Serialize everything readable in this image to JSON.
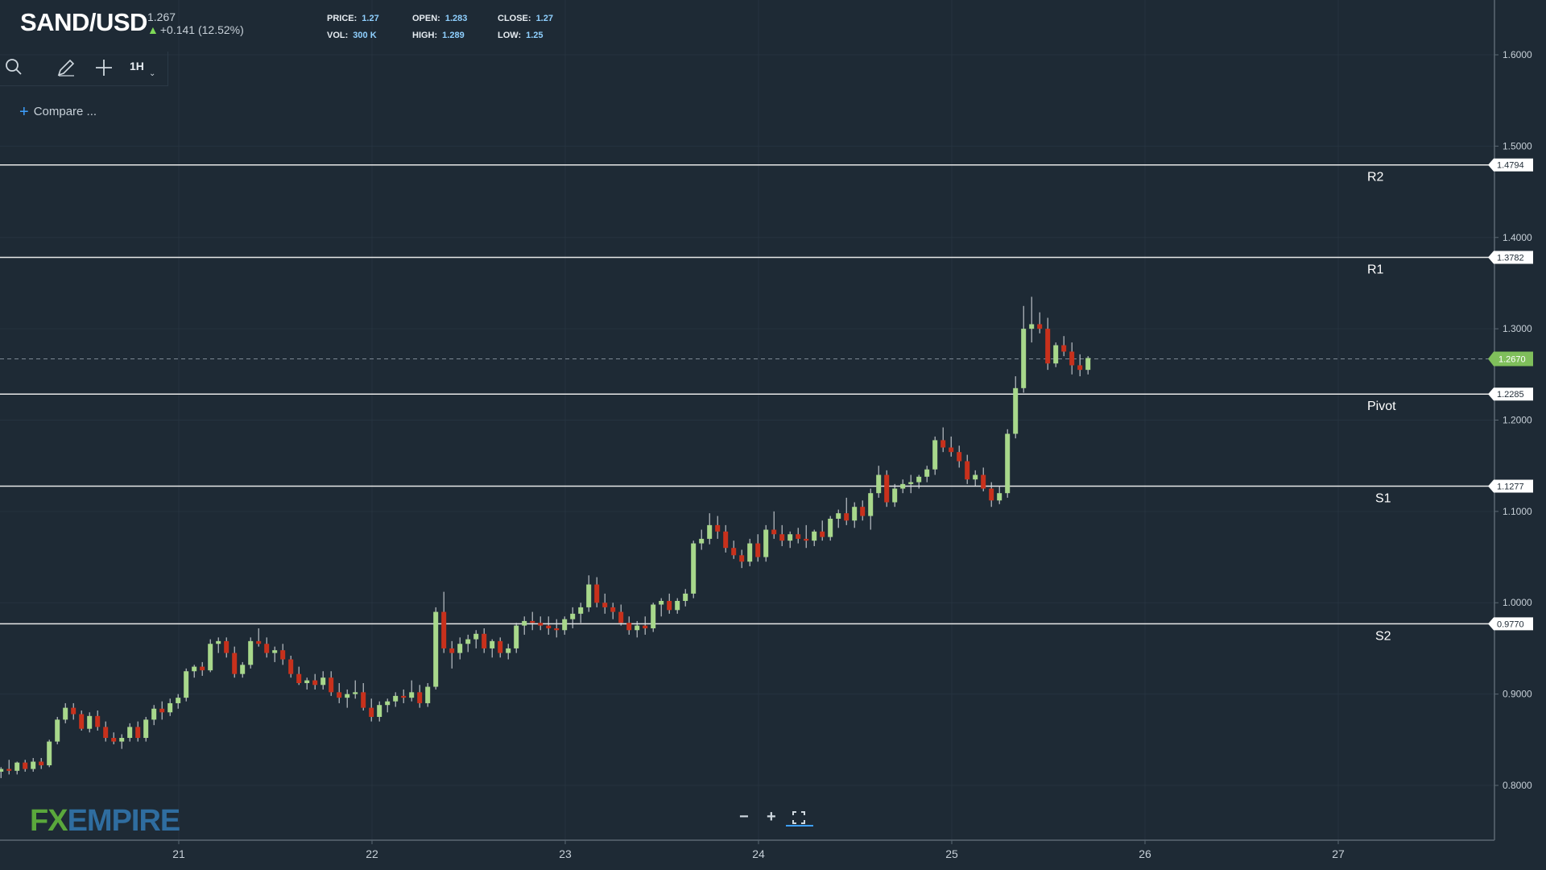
{
  "header": {
    "symbol": "SAND/USD",
    "last_price": "1.267",
    "change": "+0.141 (12.52%)",
    "stats": [
      {
        "label": "PRICE:",
        "value": "1.27"
      },
      {
        "label": "OPEN:",
        "value": "1.283"
      },
      {
        "label": "CLOSE:",
        "value": "1.27"
      },
      {
        "label": "VOL:",
        "value": "300 K"
      },
      {
        "label": "HIGH:",
        "value": "1.289"
      },
      {
        "label": "LOW:",
        "value": "1.25"
      }
    ]
  },
  "toolbar": {
    "timeframe": "1H",
    "compare_label": "Compare ..."
  },
  "watermark": {
    "part1": "FX",
    "part2": "EMPIRE"
  },
  "colors": {
    "background": "#1e2a35",
    "bull": "#a8d88b",
    "bear": "#c8311c",
    "level_line": "#e8e8e8",
    "current_price": "#7fbf5b"
  },
  "chart_data": {
    "type": "candlestick",
    "title": "SAND/USD",
    "x_ticks": [
      "21",
      "22",
      "23",
      "24",
      "25",
      "26",
      "27"
    ],
    "y_ticks": [
      "1.6000",
      "1.5000",
      "1.4000",
      "1.3000",
      "1.2000",
      "1.1000",
      "1.0000",
      "0.9000",
      "0.8000"
    ],
    "ylim": [
      0.74,
      1.66
    ],
    "current_price": {
      "label": "1.2670",
      "value": 1.267
    },
    "levels": [
      {
        "name": "R2",
        "value": 1.4794,
        "label": "1.4794"
      },
      {
        "name": "R1",
        "value": 1.3782,
        "label": "1.3782"
      },
      {
        "name": "Pivot",
        "value": 1.2285,
        "label": "1.2285"
      },
      {
        "name": "S1",
        "value": 1.1277,
        "label": "1.1277"
      },
      {
        "name": "S2",
        "value": 0.977,
        "label": "0.9770"
      }
    ],
    "x_start_day": 20.08,
    "x_step_hours": 1,
    "candles": [
      [
        0.815,
        0.82,
        0.808,
        0.818
      ],
      [
        0.818,
        0.828,
        0.812,
        0.816
      ],
      [
        0.816,
        0.826,
        0.812,
        0.825
      ],
      [
        0.825,
        0.828,
        0.815,
        0.818
      ],
      [
        0.818,
        0.83,
        0.815,
        0.826
      ],
      [
        0.826,
        0.83,
        0.818,
        0.822
      ],
      [
        0.822,
        0.85,
        0.82,
        0.848
      ],
      [
        0.848,
        0.875,
        0.845,
        0.872
      ],
      [
        0.872,
        0.89,
        0.868,
        0.885
      ],
      [
        0.885,
        0.89,
        0.872,
        0.878
      ],
      [
        0.878,
        0.882,
        0.86,
        0.862
      ],
      [
        0.862,
        0.88,
        0.858,
        0.876
      ],
      [
        0.876,
        0.882,
        0.86,
        0.864
      ],
      [
        0.864,
        0.87,
        0.848,
        0.852
      ],
      [
        0.852,
        0.858,
        0.845,
        0.848
      ],
      [
        0.848,
        0.856,
        0.84,
        0.852
      ],
      [
        0.852,
        0.868,
        0.848,
        0.864
      ],
      [
        0.864,
        0.87,
        0.848,
        0.852
      ],
      [
        0.852,
        0.875,
        0.848,
        0.872
      ],
      [
        0.872,
        0.888,
        0.866,
        0.884
      ],
      [
        0.884,
        0.892,
        0.872,
        0.88
      ],
      [
        0.88,
        0.895,
        0.876,
        0.89
      ],
      [
        0.89,
        0.9,
        0.884,
        0.896
      ],
      [
        0.896,
        0.928,
        0.892,
        0.925
      ],
      [
        0.925,
        0.932,
        0.918,
        0.93
      ],
      [
        0.93,
        0.935,
        0.92,
        0.926
      ],
      [
        0.926,
        0.96,
        0.924,
        0.955
      ],
      [
        0.955,
        0.962,
        0.945,
        0.958
      ],
      [
        0.958,
        0.962,
        0.94,
        0.945
      ],
      [
        0.945,
        0.952,
        0.918,
        0.922
      ],
      [
        0.922,
        0.935,
        0.918,
        0.932
      ],
      [
        0.932,
        0.962,
        0.928,
        0.958
      ],
      [
        0.958,
        0.972,
        0.952,
        0.955
      ],
      [
        0.955,
        0.962,
        0.94,
        0.945
      ],
      [
        0.945,
        0.952,
        0.935,
        0.948
      ],
      [
        0.948,
        0.955,
        0.932,
        0.938
      ],
      [
        0.938,
        0.942,
        0.918,
        0.922
      ],
      [
        0.922,
        0.93,
        0.91,
        0.912
      ],
      [
        0.912,
        0.918,
        0.905,
        0.915
      ],
      [
        0.915,
        0.922,
        0.905,
        0.91
      ],
      [
        0.91,
        0.925,
        0.905,
        0.918
      ],
      [
        0.918,
        0.925,
        0.898,
        0.902
      ],
      [
        0.902,
        0.912,
        0.89,
        0.896
      ],
      [
        0.896,
        0.905,
        0.885,
        0.9
      ],
      [
        0.9,
        0.915,
        0.895,
        0.902
      ],
      [
        0.902,
        0.912,
        0.882,
        0.885
      ],
      [
        0.885,
        0.895,
        0.87,
        0.875
      ],
      [
        0.875,
        0.892,
        0.87,
        0.888
      ],
      [
        0.888,
        0.895,
        0.88,
        0.892
      ],
      [
        0.892,
        0.902,
        0.886,
        0.898
      ],
      [
        0.898,
        0.905,
        0.89,
        0.896
      ],
      [
        0.896,
        0.915,
        0.892,
        0.902
      ],
      [
        0.902,
        0.91,
        0.885,
        0.89
      ],
      [
        0.89,
        0.912,
        0.886,
        0.908
      ],
      [
        0.908,
        0.995,
        0.905,
        0.99
      ],
      [
        0.99,
        1.012,
        0.945,
        0.95
      ],
      [
        0.95,
        0.958,
        0.928,
        0.945
      ],
      [
        0.945,
        0.962,
        0.938,
        0.955
      ],
      [
        0.955,
        0.965,
        0.946,
        0.96
      ],
      [
        0.96,
        0.97,
        0.95,
        0.966
      ],
      [
        0.966,
        0.972,
        0.945,
        0.95
      ],
      [
        0.95,
        0.96,
        0.94,
        0.958
      ],
      [
        0.958,
        0.962,
        0.94,
        0.945
      ],
      [
        0.945,
        0.955,
        0.938,
        0.95
      ],
      [
        0.95,
        0.978,
        0.945,
        0.975
      ],
      [
        0.975,
        0.985,
        0.965,
        0.98
      ],
      [
        0.98,
        0.99,
        0.97,
        0.978
      ],
      [
        0.978,
        0.985,
        0.97,
        0.975
      ],
      [
        0.975,
        0.985,
        0.965,
        0.972
      ],
      [
        0.972,
        0.982,
        0.962,
        0.97
      ],
      [
        0.97,
        0.985,
        0.965,
        0.982
      ],
      [
        0.982,
        0.995,
        0.972,
        0.988
      ],
      [
        0.988,
        1.0,
        0.978,
        0.995
      ],
      [
        0.995,
        1.03,
        0.99,
        1.02
      ],
      [
        1.02,
        1.028,
        0.995,
        1.0
      ],
      [
        1.0,
        1.01,
        0.988,
        0.995
      ],
      [
        0.995,
        1.0,
        0.982,
        0.99
      ],
      [
        0.99,
        0.998,
        0.975,
        0.978
      ],
      [
        0.978,
        0.985,
        0.965,
        0.97
      ],
      [
        0.97,
        0.98,
        0.962,
        0.975
      ],
      [
        0.975,
        0.985,
        0.965,
        0.972
      ],
      [
        0.972,
        1.0,
        0.968,
        0.998
      ],
      [
        0.998,
        1.005,
        0.985,
        1.002
      ],
      [
        1.002,
        1.01,
        0.988,
        0.992
      ],
      [
        0.992,
        1.005,
        0.988,
        1.002
      ],
      [
        1.002,
        1.015,
        0.996,
        1.01
      ],
      [
        1.01,
        1.068,
        1.005,
        1.065
      ],
      [
        1.065,
        1.08,
        1.058,
        1.07
      ],
      [
        1.07,
        1.098,
        1.064,
        1.085
      ],
      [
        1.085,
        1.095,
        1.07,
        1.078
      ],
      [
        1.078,
        1.085,
        1.055,
        1.06
      ],
      [
        1.06,
        1.068,
        1.048,
        1.052
      ],
      [
        1.052,
        1.058,
        1.038,
        1.045
      ],
      [
        1.045,
        1.07,
        1.04,
        1.065
      ],
      [
        1.065,
        1.075,
        1.045,
        1.05
      ],
      [
        1.05,
        1.085,
        1.045,
        1.08
      ],
      [
        1.08,
        1.1,
        1.07,
        1.075
      ],
      [
        1.075,
        1.085,
        1.062,
        1.068
      ],
      [
        1.068,
        1.078,
        1.06,
        1.075
      ],
      [
        1.075,
        1.082,
        1.065,
        1.07
      ],
      [
        1.07,
        1.085,
        1.06,
        1.068
      ],
      [
        1.068,
        1.08,
        1.062,
        1.078
      ],
      [
        1.078,
        1.09,
        1.068,
        1.072
      ],
      [
        1.072,
        1.095,
        1.068,
        1.092
      ],
      [
        1.092,
        1.102,
        1.082,
        1.098
      ],
      [
        1.098,
        1.115,
        1.085,
        1.09
      ],
      [
        1.09,
        1.11,
        1.082,
        1.105
      ],
      [
        1.105,
        1.112,
        1.09,
        1.095
      ],
      [
        1.095,
        1.125,
        1.08,
        1.12
      ],
      [
        1.12,
        1.15,
        1.115,
        1.14
      ],
      [
        1.14,
        1.145,
        1.105,
        1.11
      ],
      [
        1.11,
        1.13,
        1.105,
        1.125
      ],
      [
        1.125,
        1.135,
        1.12,
        1.13
      ],
      [
        1.13,
        1.14,
        1.12,
        1.132
      ],
      [
        1.132,
        1.14,
        1.125,
        1.138
      ],
      [
        1.138,
        1.15,
        1.132,
        1.146
      ],
      [
        1.146,
        1.182,
        1.14,
        1.178
      ],
      [
        1.178,
        1.192,
        1.165,
        1.17
      ],
      [
        1.17,
        1.182,
        1.16,
        1.165
      ],
      [
        1.165,
        1.172,
        1.148,
        1.155
      ],
      [
        1.155,
        1.162,
        1.13,
        1.135
      ],
      [
        1.135,
        1.145,
        1.128,
        1.14
      ],
      [
        1.14,
        1.148,
        1.122,
        1.125
      ],
      [
        1.125,
        1.132,
        1.105,
        1.112
      ],
      [
        1.112,
        1.128,
        1.108,
        1.12
      ],
      [
        1.12,
        1.19,
        1.115,
        1.185
      ],
      [
        1.185,
        1.248,
        1.18,
        1.235
      ],
      [
        1.235,
        1.325,
        1.23,
        1.3
      ],
      [
        1.3,
        1.335,
        1.285,
        1.305
      ],
      [
        1.305,
        1.318,
        1.295,
        1.3
      ],
      [
        1.3,
        1.312,
        1.255,
        1.262
      ],
      [
        1.262,
        1.285,
        1.258,
        1.282
      ],
      [
        1.282,
        1.292,
        1.27,
        1.275
      ],
      [
        1.275,
        1.285,
        1.25,
        1.26
      ],
      [
        1.26,
        1.272,
        1.248,
        1.255
      ],
      [
        1.255,
        1.27,
        1.25,
        1.268
      ]
    ]
  }
}
